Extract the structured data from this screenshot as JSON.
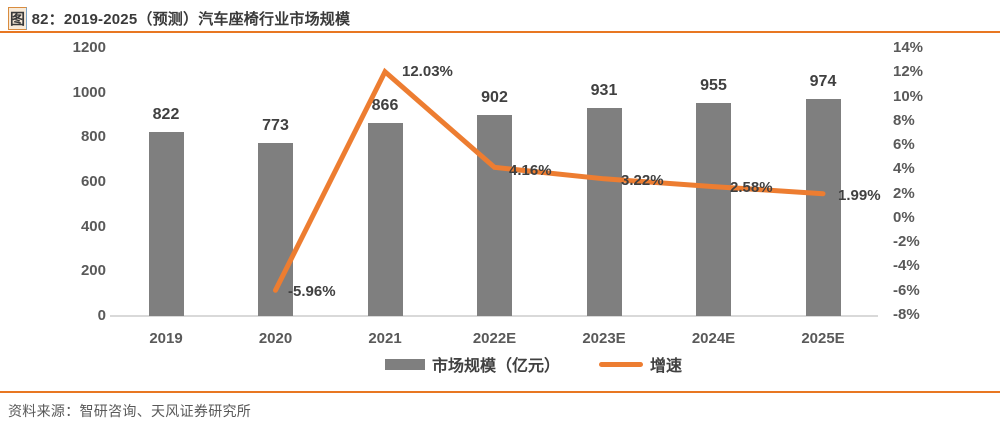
{
  "title": {
    "fig_char": "图",
    "rest": " 82：2019-2025（预测）汽车座椅行业市场规模"
  },
  "chart_data": {
    "type": "bar+line combo",
    "categories": [
      "2019",
      "2020",
      "2021",
      "2022E",
      "2023E",
      "2024E",
      "2025E"
    ],
    "series": [
      {
        "name": "市场规模（亿元）",
        "type": "bar",
        "axis": "left",
        "color": "#7f7f7f",
        "values": [
          822,
          773,
          866,
          902,
          931,
          955,
          974
        ],
        "value_labels": [
          "822",
          "773",
          "866",
          "902",
          "931",
          "955",
          "974"
        ]
      },
      {
        "name": "增速",
        "type": "line",
        "axis": "right",
        "color": "#ed7d31",
        "values": [
          null,
          -5.96,
          12.03,
          4.16,
          3.22,
          2.58,
          1.99
        ],
        "value_labels": [
          "",
          "-5.96%",
          "12.03%",
          "4.16%",
          "3.22%",
          "2.58%",
          "1.99%"
        ]
      }
    ],
    "left_axis": {
      "min": 0,
      "max": 1200,
      "ticks": [
        "1200",
        "1000",
        "800",
        "600",
        "400",
        "200",
        "0"
      ]
    },
    "right_axis": {
      "min": -8,
      "max": 14,
      "ticks": [
        "14%",
        "12%",
        "10%",
        "8%",
        "6%",
        "4%",
        "2%",
        "0%",
        "-2%",
        "-4%",
        "-6%",
        "-8%"
      ]
    },
    "grid": "off",
    "legend_position": "bottom-center"
  },
  "source_line": "资料来源：智研咨询、天风证券研究所",
  "colors": {
    "bar": "#7f7f7f",
    "line": "#ed7d31",
    "rule": "#e87722",
    "axis_text": "#595959",
    "label_text": "#404040",
    "baseline": "#d9d9d9"
  }
}
